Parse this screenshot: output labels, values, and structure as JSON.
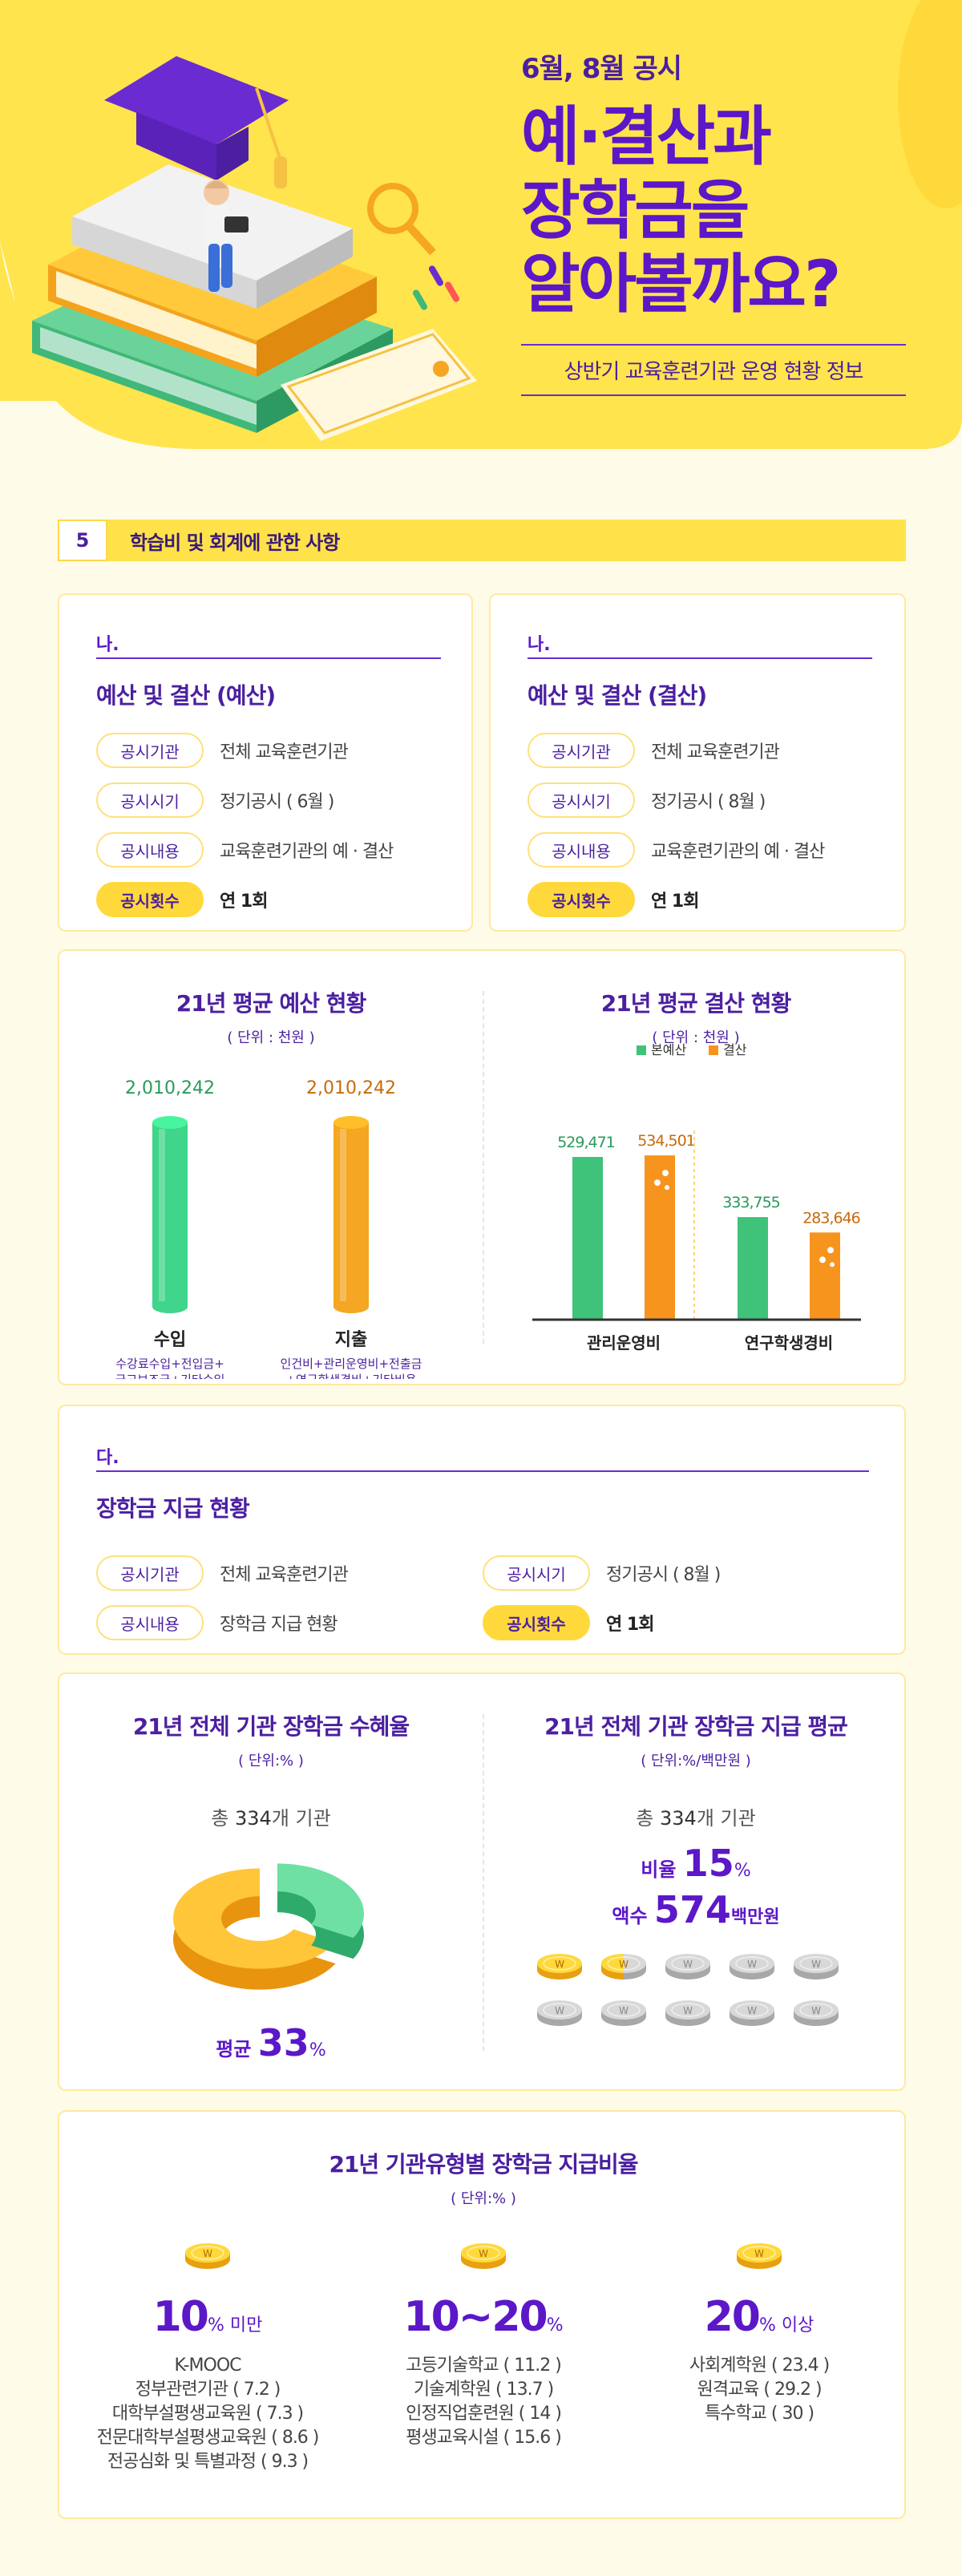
{
  "hero": {
    "subtitle": "6월, 8월 공시",
    "title_lines": [
      "예·결산과",
      "장학금을",
      "알아볼까요?"
    ],
    "tagline": "상반기 교육훈련기관 운영 현황 정보"
  },
  "section": {
    "number": "5",
    "title": "학습비 및 회계에 관한 사항"
  },
  "card_budget": {
    "prefix": "나.",
    "title": "예산 및 결산 (예산)",
    "rows": [
      {
        "key": "공시기관",
        "value": "전체 교육훈련기관"
      },
      {
        "key": "공시시기",
        "value": "정기공시 ( 6월 )"
      },
      {
        "key": "공시내용",
        "value": "교육훈련기관의 예 · 결산"
      },
      {
        "key": "공시횟수",
        "value": "연 1회"
      }
    ]
  },
  "card_settle": {
    "prefix": "나.",
    "title": "예산 및 결산 (결산)",
    "rows": [
      {
        "key": "공시기관",
        "value": "전체 교육훈련기관"
      },
      {
        "key": "공시시기",
        "value": "정기공시 ( 8월 )"
      },
      {
        "key": "공시내용",
        "value": "교육훈련기관의 예 · 결산"
      },
      {
        "key": "공시횟수",
        "value": "연 1회"
      }
    ]
  },
  "budget_chart": {
    "title": "21년 평균 예산 현황",
    "unit": "( 단위 : 천원 )",
    "items": [
      {
        "label": "수입",
        "value_text": "2,010,242",
        "note1": "수강료수입+전입금+",
        "note2": "국고보조금+기타수입",
        "color": "#3fd58a"
      },
      {
        "label": "지출",
        "value_text": "2,010,242",
        "note1": "인건비+관리운영비+전출금",
        "note2": "+연구학생경비+기타비용",
        "color": "#f5a623"
      }
    ]
  },
  "chart_data": {
    "type": "bar",
    "title": "21년 평균 결산 현황",
    "unit": "( 단위 : 천원 )",
    "categories": [
      "관리운영비",
      "연구학생경비"
    ],
    "series": [
      {
        "name": "본예산",
        "values": [
          529471,
          333755
        ],
        "color": "#3fc27a"
      },
      {
        "name": "결산",
        "values": [
          534501,
          283646
        ],
        "color": "#f7941d"
      }
    ],
    "value_labels": [
      [
        "529,471",
        "333,755"
      ],
      [
        "534,501",
        "283,646"
      ]
    ],
    "ylim": [
      0,
      600000
    ],
    "legend": "top"
  },
  "card_scholar": {
    "prefix": "다.",
    "title": "장학금 지급 현황",
    "rows": [
      {
        "key": "공시기관",
        "value": "전체 교육훈련기관"
      },
      {
        "key": "공시내용",
        "value": "장학금 지급 현황"
      },
      {
        "key": "공시시기",
        "value": "정기공시 ( 8월 )"
      },
      {
        "key": "공시횟수",
        "value": "연 1회"
      }
    ]
  },
  "rate_panel": {
    "title": "21년 전체 기관 장학금 수혜율",
    "unit": "( 단위:% )",
    "total_prefix": "총 ",
    "total_num": "334",
    "total_suffix": "개 기관",
    "avg_label": "평균 ",
    "avg_value": "33",
    "avg_unit": "%",
    "fraction": 0.33
  },
  "avg_panel": {
    "title": "21년 전체 기관 장학금 지급 평균",
    "unit": "( 단위:%/백만원 )",
    "total_prefix": "총 ",
    "total_num": "334",
    "total_suffix": "개 기관",
    "ratio_label": "비율 ",
    "ratio_value": "15",
    "ratio_unit": "%",
    "amount_label": "액수 ",
    "amount_value": "574",
    "amount_unit": "백만원",
    "coin_symbol": "W",
    "coins_total": 10,
    "coins_filled": 1.5
  },
  "type_panel": {
    "title": "21년 기관유형별 장학금 지급비율",
    "unit": "( 단위:% )",
    "coin_symbol": "W",
    "columns": [
      {
        "big": "10",
        "suffix": "% 미만",
        "items": [
          "K-MOOC",
          "정부관련기관 ( 7.2 )",
          "대학부설평생교육원 ( 7.3 )",
          "전문대학부설평생교육원 ( 8.6 )",
          "전공심화 및 특별과정 ( 9.3 )"
        ]
      },
      {
        "big": "10~20",
        "suffix": "%",
        "items": [
          "고등기술학교 ( 11.2 )",
          "기술계학원 ( 13.7 )",
          "인정직업훈련원 ( 14 )",
          "평생교육시설 ( 15.6 )"
        ]
      },
      {
        "big": "20",
        "suffix": "% 이상",
        "items": [
          "사회계학원 ( 23.4 )",
          "원격교육 ( 29.2 )",
          "특수학교 ( 30 )"
        ]
      }
    ]
  }
}
